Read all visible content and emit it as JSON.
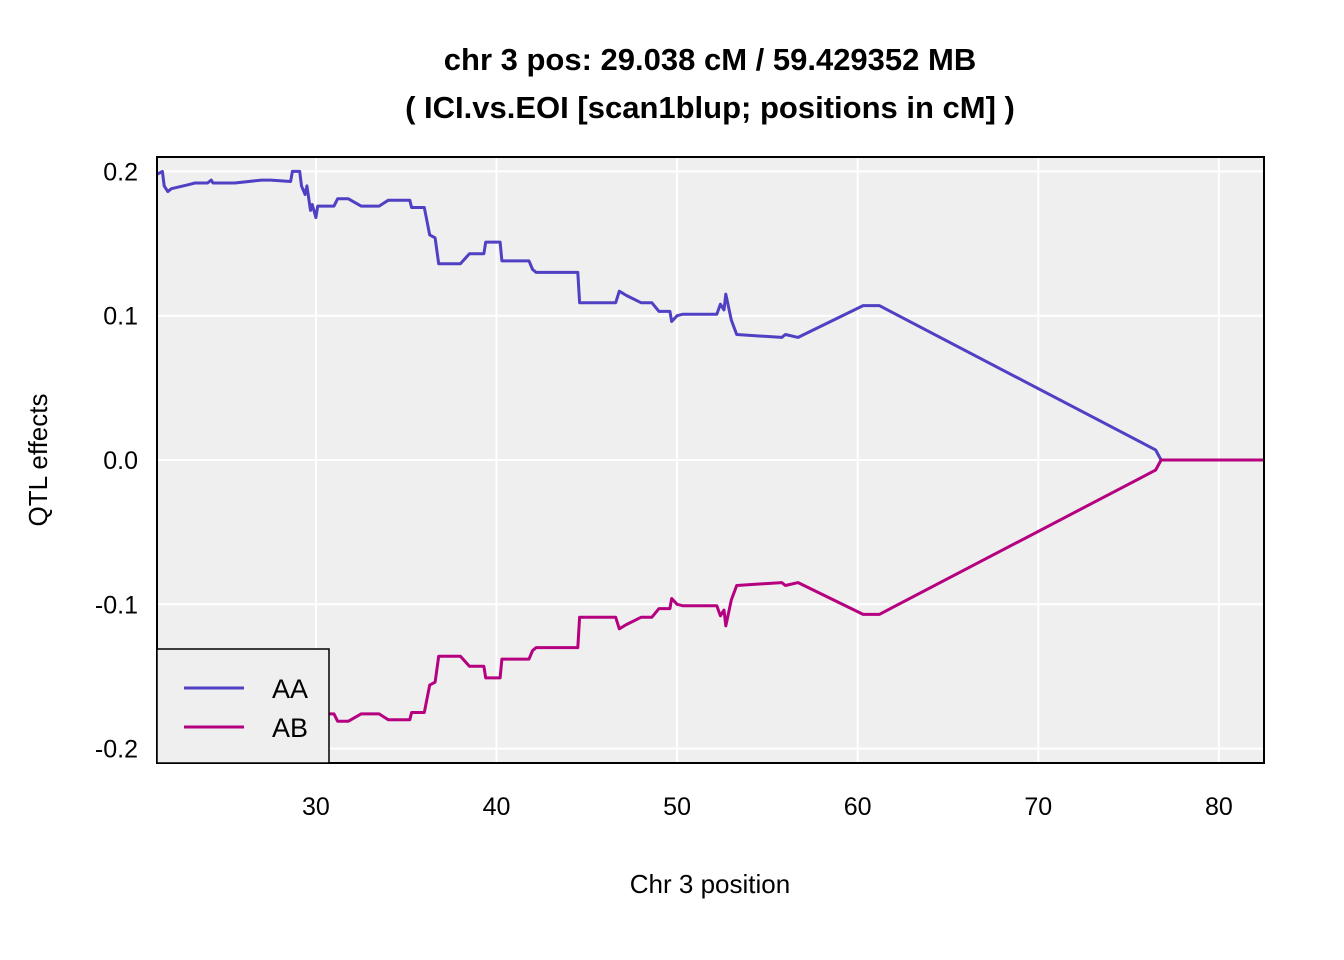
{
  "chart_data": {
    "type": "line",
    "title": "chr 3 pos:  29.038 cM / 59.429352 MB",
    "subtitle": "( ICI.vs.EOI  [scan1blup; positions in cM] )",
    "xlabel": "Chr 3 position",
    "ylabel": "QTL effects",
    "xlim": [
      21.2,
      82.5
    ],
    "ylim": [
      -0.21,
      0.21
    ],
    "x_ticks": [
      30,
      40,
      50,
      60,
      70,
      80
    ],
    "y_ticks": [
      -0.2,
      -0.1,
      0.0,
      0.1,
      0.2
    ],
    "x_tick_labels": [
      "30",
      "40",
      "50",
      "60",
      "70",
      "80"
    ],
    "y_tick_labels": [
      "-0.2",
      "-0.1",
      "0.0",
      "0.1",
      "0.2"
    ],
    "grid": true,
    "legend_position": "bottom-left",
    "series": [
      {
        "name": "AA",
        "color": "#4f40c4",
        "x": [
          21.2,
          21.5,
          21.6,
          21.8,
          22.0,
          23.0,
          23.3,
          24.0,
          24.2,
          24.3,
          25.2,
          25.5,
          27.0,
          27.5,
          28.6,
          28.7,
          29.1,
          29.2,
          29.4,
          29.5,
          29.7,
          29.8,
          30.0,
          30.1,
          30.4,
          31.0,
          31.2,
          31.8,
          32.5,
          33.5,
          34.0,
          35.2,
          35.3,
          36.0,
          36.3,
          36.6,
          36.8,
          38.0,
          38.5,
          39.3,
          39.4,
          40.2,
          40.3,
          41.8,
          42.0,
          42.2,
          44.5,
          44.6,
          46.6,
          46.8,
          47.2,
          48.0,
          48.6,
          49.0,
          49.6,
          49.7,
          50.0,
          50.3,
          52.2,
          52.4,
          52.6,
          52.7,
          53.0,
          53.3,
          55.8,
          56.0,
          56.7,
          60.3,
          61.2,
          76.5,
          76.8,
          82.5
        ],
        "values": [
          0.198,
          0.2,
          0.19,
          0.186,
          0.188,
          0.191,
          0.192,
          0.192,
          0.194,
          0.192,
          0.192,
          0.192,
          0.194,
          0.194,
          0.193,
          0.2,
          0.2,
          0.19,
          0.184,
          0.19,
          0.173,
          0.177,
          0.168,
          0.176,
          0.176,
          0.176,
          0.181,
          0.181,
          0.176,
          0.176,
          0.18,
          0.18,
          0.175,
          0.175,
          0.156,
          0.154,
          0.136,
          0.136,
          0.143,
          0.143,
          0.151,
          0.151,
          0.138,
          0.138,
          0.132,
          0.13,
          0.13,
          0.109,
          0.109,
          0.117,
          0.114,
          0.109,
          0.109,
          0.103,
          0.103,
          0.096,
          0.1,
          0.101,
          0.101,
          0.108,
          0.104,
          0.115,
          0.097,
          0.087,
          0.085,
          0.087,
          0.085,
          0.107,
          0.107,
          0.007,
          0.0,
          0.0
        ]
      },
      {
        "name": "AB",
        "color": "#b5007f",
        "x": [
          30.4,
          31.0,
          31.2,
          31.8,
          32.5,
          33.5,
          34.0,
          35.2,
          35.3,
          36.0,
          36.3,
          36.6,
          36.8,
          38.0,
          38.5,
          39.3,
          39.4,
          40.2,
          40.3,
          41.8,
          42.0,
          42.2,
          44.5,
          44.6,
          46.6,
          46.8,
          47.2,
          48.0,
          48.6,
          49.0,
          49.6,
          49.7,
          50.0,
          50.3,
          52.2,
          52.4,
          52.6,
          52.7,
          53.0,
          53.3,
          55.8,
          56.0,
          56.7,
          60.3,
          61.2,
          76.5,
          76.8,
          82.5
        ],
        "values": [
          -0.176,
          -0.176,
          -0.181,
          -0.181,
          -0.176,
          -0.176,
          -0.18,
          -0.18,
          -0.175,
          -0.175,
          -0.156,
          -0.154,
          -0.136,
          -0.136,
          -0.143,
          -0.143,
          -0.151,
          -0.151,
          -0.138,
          -0.138,
          -0.132,
          -0.13,
          -0.13,
          -0.109,
          -0.109,
          -0.117,
          -0.114,
          -0.109,
          -0.109,
          -0.103,
          -0.103,
          -0.096,
          -0.1,
          -0.101,
          -0.101,
          -0.108,
          -0.104,
          -0.115,
          -0.097,
          -0.087,
          -0.085,
          -0.087,
          -0.085,
          -0.107,
          -0.107,
          -0.007,
          0.0,
          0.0
        ]
      }
    ]
  }
}
